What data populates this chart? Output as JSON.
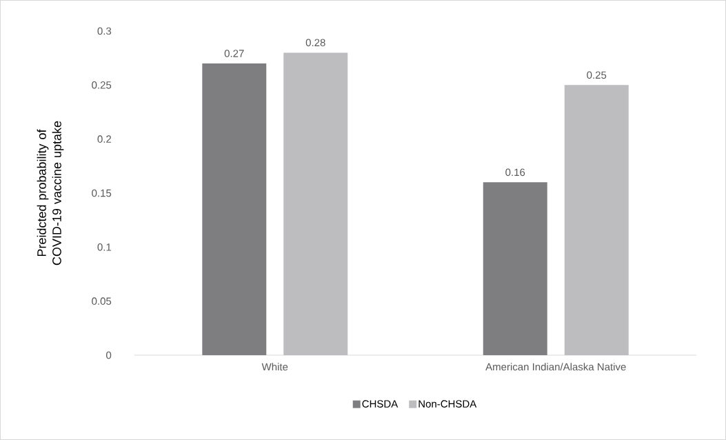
{
  "chart_data": {
    "type": "bar",
    "ylabel": "Preidcted probability of COVID-19 vaccine uptake",
    "categories": [
      "White",
      "American Indian/Alaska Native"
    ],
    "series": [
      {
        "name": "CHSDA",
        "color": "#7e7e81",
        "values": [
          0.27,
          0.16
        ]
      },
      {
        "name": "Non-CHSDA",
        "color": "#bdbdbf",
        "values": [
          0.28,
          0.25
        ]
      }
    ],
    "ylim": [
      0,
      0.3
    ],
    "yticks": [
      0,
      0.05,
      0.1,
      0.15,
      0.2,
      0.25,
      0.3
    ],
    "data_labels": true,
    "grid": false,
    "legend": "bottom"
  }
}
